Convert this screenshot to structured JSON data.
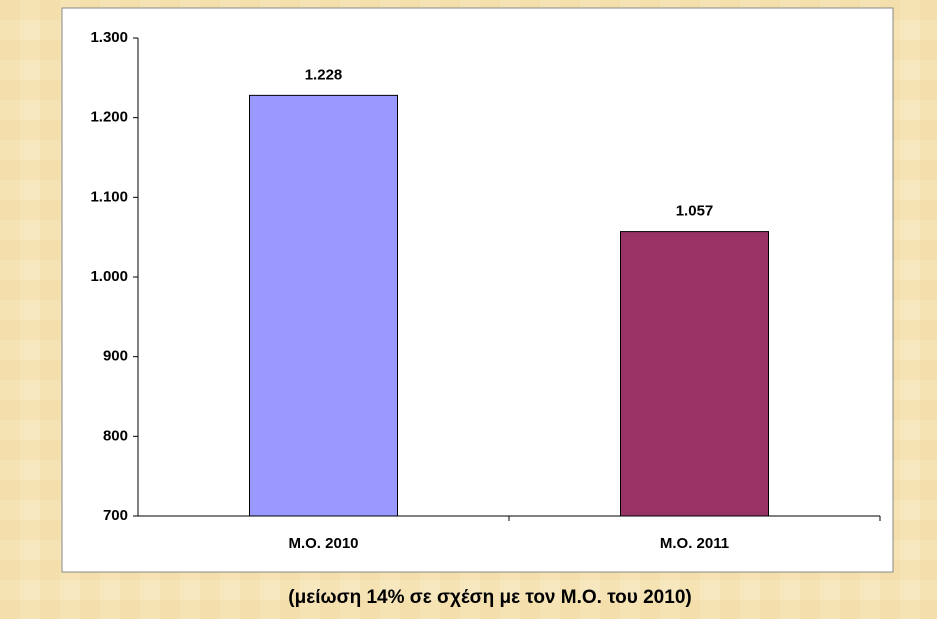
{
  "chart_data": {
    "type": "bar",
    "categories": [
      "Μ.Ο. 2010",
      "Μ.Ο. 2011"
    ],
    "values": [
      1228,
      1057
    ],
    "value_labels": [
      "1.228",
      "1.057"
    ],
    "colors": [
      "#9999ff",
      "#993366"
    ],
    "ylim": [
      700,
      1300
    ],
    "yticks": [
      700,
      800,
      900,
      {
        "value": 1000,
        "label": "1.000"
      },
      {
        "value": 1100,
        "label": "1.100"
      },
      {
        "value": 1200,
        "label": "1.200"
      },
      {
        "value": 1300,
        "label": "1.300"
      }
    ],
    "grid": false,
    "annotation": "(μείωση 14% σε σχέση με τον Μ.Ο. του 2010)"
  }
}
